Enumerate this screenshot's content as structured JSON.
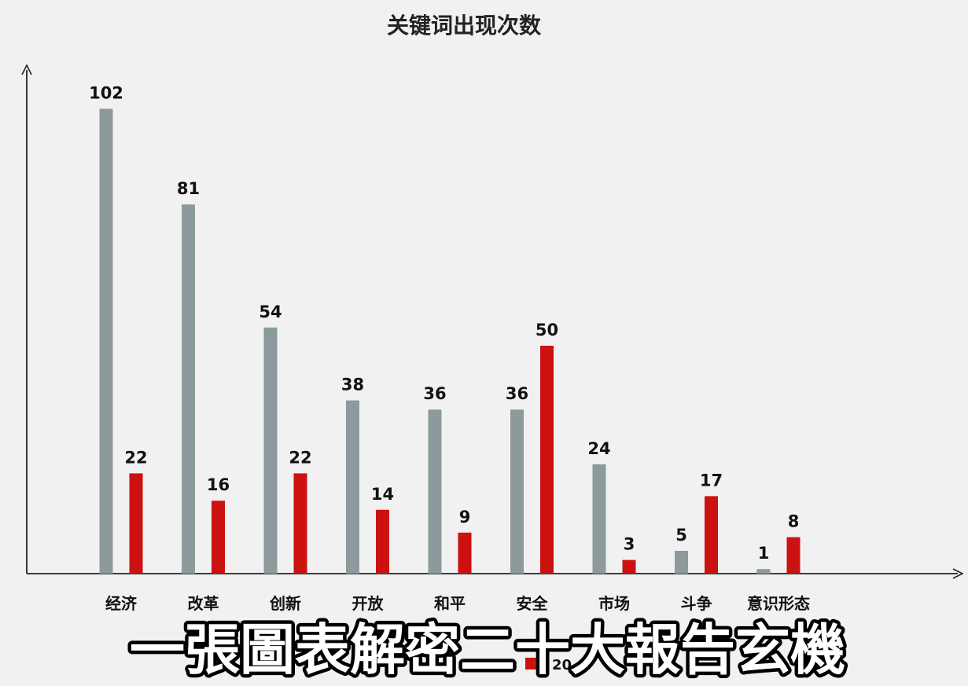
{
  "caption": "一張圖表解密二十大報告玄機",
  "chart_data": {
    "type": "bar",
    "title": "关键词出现次数",
    "xlabel": "",
    "ylabel": "",
    "ylim": [
      0,
      110
    ],
    "grid": false,
    "legend_position": "bottom",
    "categories": [
      "经济",
      "改革",
      "创新",
      "开放",
      "和平",
      "安全",
      "市场",
      "斗争",
      "意识形态"
    ],
    "series": [
      {
        "name": "",
        "color": "#8c9a9c",
        "values": [
          102,
          81,
          54,
          38,
          36,
          36,
          24,
          5,
          1
        ]
      },
      {
        "name": "20",
        "color": "#cc1111",
        "values": [
          22,
          16,
          22,
          14,
          9,
          50,
          3,
          17,
          8
        ]
      }
    ]
  }
}
